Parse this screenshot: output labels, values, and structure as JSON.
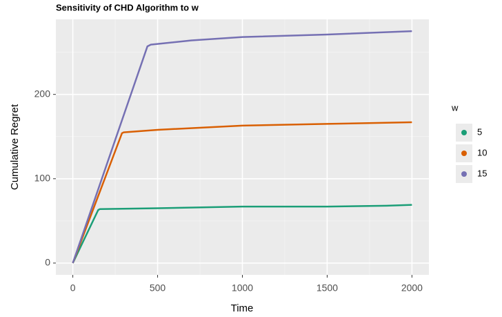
{
  "chart_data": {
    "type": "line",
    "title": "Sensitivity of CHD Algorithm to w",
    "x_label": "Time",
    "y_label": "Cumulative Regret",
    "legend_title": "w",
    "legend_position": "right",
    "grid": true,
    "xlim": [
      -100,
      2100
    ],
    "ylim": [
      -14,
      289
    ],
    "xticks": [
      0,
      500,
      1000,
      1500,
      2000
    ],
    "yticks": [
      0,
      100,
      200
    ],
    "xminor": [
      250,
      750,
      1250,
      1750
    ],
    "yminor": [
      50,
      150,
      250
    ],
    "series": [
      {
        "name": "5",
        "color": "#1b9e77",
        "x": [
          0,
          150,
          160,
          500,
          1000,
          1500,
          1850,
          2000
        ],
        "values": [
          0,
          63,
          64,
          65,
          67,
          67,
          68,
          69
        ]
      },
      {
        "name": "10",
        "color": "#d95f02",
        "x": [
          0,
          290,
          300,
          500,
          1000,
          1500,
          2000
        ],
        "values": [
          0,
          154,
          155,
          158,
          163,
          165,
          167
        ]
      },
      {
        "name": "15",
        "color": "#7570b3",
        "x": [
          0,
          440,
          460,
          700,
          1000,
          1500,
          2000
        ],
        "values": [
          0,
          257,
          259,
          264,
          268,
          271,
          275
        ]
      }
    ]
  }
}
